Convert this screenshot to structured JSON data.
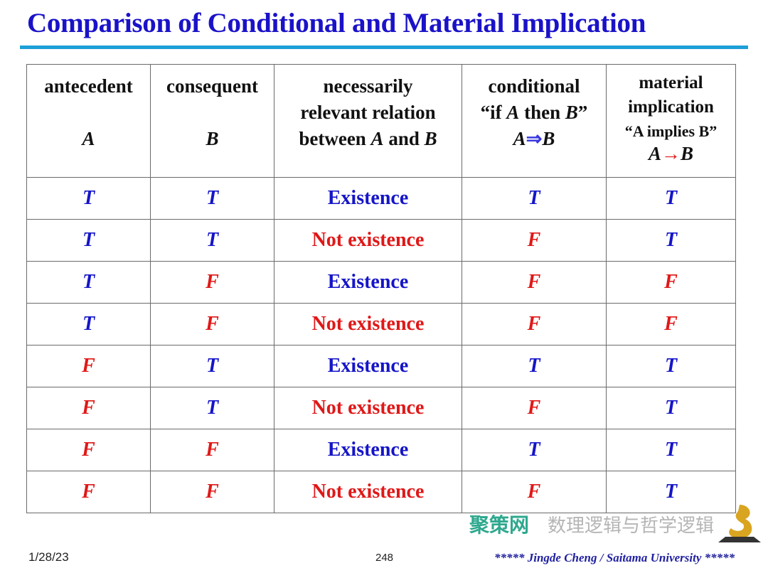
{
  "title": "Comparison of Conditional and Material Implication",
  "headers": {
    "antecedent": {
      "label": "antecedent",
      "var": "A"
    },
    "consequent": {
      "label": "consequent",
      "var": "B"
    },
    "relation": {
      "line1": "necessarily",
      "line2": "relevant relation",
      "line3a": "between ",
      "A": "A",
      "and": " and ",
      "B": "B"
    },
    "conditional": {
      "label": "conditional",
      "q1": "“if ",
      "A": "A",
      "then": " then ",
      "B": "B",
      "q2": "”",
      "sym_a": "A",
      "arrow": "⇒",
      "sym_b": "B"
    },
    "material": {
      "line1": "material",
      "line2": "implication",
      "quote": "“A implies B”",
      "sym_a": "A",
      "arrow": "→",
      "sym_b": "B"
    }
  },
  "rows": [
    {
      "a": "T",
      "b": "T",
      "rel": "Existence",
      "cond": "T",
      "mat": "T"
    },
    {
      "a": "T",
      "b": "T",
      "rel": "Not existence",
      "cond": "F",
      "mat": "T"
    },
    {
      "a": "T",
      "b": "F",
      "rel": "Existence",
      "cond": "F",
      "mat": "F"
    },
    {
      "a": "T",
      "b": "F",
      "rel": "Not existence",
      "cond": "F",
      "mat": "F"
    },
    {
      "a": "F",
      "b": "T",
      "rel": "Existence",
      "cond": "T",
      "mat": "T"
    },
    {
      "a": "F",
      "b": "T",
      "rel": "Not existence",
      "cond": "F",
      "mat": "T"
    },
    {
      "a": "F",
      "b": "F",
      "rel": "Existence",
      "cond": "T",
      "mat": "T"
    },
    {
      "a": "F",
      "b": "F",
      "rel": "Not existence",
      "cond": "F",
      "mat": "T"
    }
  ],
  "footer": {
    "date": "1/28/23",
    "page": "248",
    "author": "***** Jingde Cheng / Saitama University *****"
  },
  "watermarks": {
    "wechat": "数理逻辑与哲学逻辑",
    "site": "聚策网"
  },
  "colors": {
    "title": "#1a12c8",
    "true": "#1515c8",
    "false": "#e01818",
    "rule": "#1e9fd8"
  }
}
